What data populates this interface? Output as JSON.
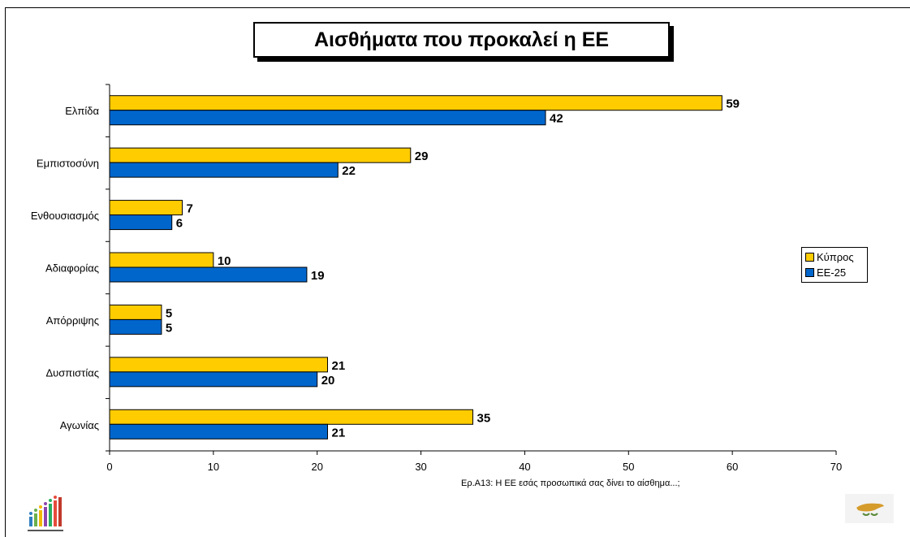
{
  "chart_data": {
    "type": "bar",
    "orientation": "horizontal",
    "title": "Αισθήματα που προκαλεί η ΕΕ",
    "categories": [
      "Ελπίδα",
      "Εμπιστοσύνη",
      "Ενθουσιασμός",
      "Αδιαφορίας",
      "Απόρριψης",
      "Δυσπιστίας",
      "Αγωνίας"
    ],
    "series": [
      {
        "name": "Κύπρος",
        "color": "#ffcc00",
        "values": [
          59,
          29,
          7,
          10,
          5,
          21,
          35
        ]
      },
      {
        "name": "ΕΕ-25",
        "color": "#0066cc",
        "values": [
          42,
          22,
          6,
          19,
          5,
          20,
          21
        ]
      }
    ],
    "xlim": [
      0,
      70
    ],
    "xticks": [
      0,
      10,
      20,
      30,
      40,
      50,
      60,
      70
    ],
    "grid": false,
    "legend_position": "right",
    "data_labels": true,
    "footnote": "Ερ.Α13: Η ΕΕ εσάς προσωπικά σας δίνει το αίσθημα...;"
  },
  "icons": {
    "logo": "eurobarometer-logo",
    "flag": "cyprus-flag"
  }
}
